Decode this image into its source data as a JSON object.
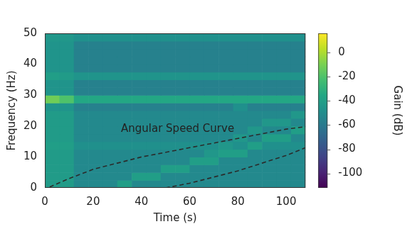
{
  "chart_data": {
    "type": "heatmap",
    "x_label": "Time (s)",
    "y_label": "Frequency (Hz)",
    "xlim": [
      0,
      108
    ],
    "xticks": [
      0,
      20,
      40,
      60,
      80,
      100
    ],
    "ylim": [
      0,
      50
    ],
    "yticks": [
      0,
      10,
      20,
      30,
      40,
      50
    ],
    "grid": false,
    "cells": {
      "x_edges": [
        0,
        6,
        12,
        18,
        24,
        30,
        36,
        42,
        48,
        54,
        60,
        66,
        72,
        78,
        84,
        90,
        96,
        102,
        108
      ],
      "y_edges": [
        0,
        2.5,
        5,
        7.5,
        10,
        12.5,
        15,
        17.5,
        20,
        22.5,
        25,
        27.5,
        30,
        32.5,
        35,
        37.5,
        40,
        42.5,
        45,
        47.5,
        50
      ],
      "values": [
        [
          -42,
          -42,
          -52,
          -52,
          -52,
          -40,
          -52,
          -52,
          -52,
          -52,
          -52,
          -52,
          -52,
          -52,
          -52,
          -52,
          -52,
          -52
        ],
        [
          -42,
          -42,
          -52,
          -52,
          -52,
          -52,
          -40,
          -40,
          -52,
          -52,
          -52,
          -52,
          -52,
          -52,
          -52,
          -52,
          -52,
          -52
        ],
        [
          -42,
          -42,
          -52,
          -52,
          -52,
          -52,
          -52,
          -52,
          -40,
          -40,
          -52,
          -52,
          -52,
          -52,
          -52,
          -52,
          -52,
          -52
        ],
        [
          -42,
          -42,
          -52,
          -52,
          -52,
          -52,
          -52,
          -52,
          -52,
          -52,
          -40,
          -40,
          -52,
          -52,
          -52,
          -52,
          -52,
          -52
        ],
        [
          -42,
          -42,
          -52,
          -52,
          -52,
          -52,
          -52,
          -52,
          -52,
          -52,
          -52,
          -44,
          -40,
          -40,
          -52,
          -52,
          -52,
          -52
        ],
        [
          -40,
          -40,
          -48,
          -48,
          -48,
          -48,
          -48,
          -48,
          -48,
          -48,
          -48,
          -48,
          -44,
          -48,
          -40,
          -48,
          -48,
          -48
        ],
        [
          -42,
          -42,
          -52,
          -52,
          -52,
          -52,
          -52,
          -52,
          -52,
          -52,
          -52,
          -52,
          -52,
          -44,
          -52,
          -40,
          -40,
          -52
        ],
        [
          -42,
          -42,
          -52,
          -52,
          -52,
          -52,
          -52,
          -52,
          -52,
          -52,
          -52,
          -52,
          -52,
          -52,
          -44,
          -52,
          -52,
          -40
        ],
        [
          -42,
          -42,
          -52,
          -52,
          -52,
          -52,
          -52,
          -52,
          -52,
          -52,
          -52,
          -52,
          -52,
          -52,
          -52,
          -44,
          -44,
          -52
        ],
        [
          -42,
          -42,
          -52,
          -52,
          -52,
          -52,
          -52,
          -52,
          -52,
          -52,
          -52,
          -52,
          -52,
          -52,
          -52,
          -52,
          -52,
          -44
        ],
        [
          -46,
          -46,
          -56,
          -56,
          -56,
          -56,
          -56,
          -56,
          -56,
          -56,
          -56,
          -56,
          -56,
          -48,
          -56,
          -56,
          -56,
          -56
        ],
        [
          -12,
          -20,
          -35,
          -35,
          -35,
          -35,
          -35,
          -35,
          -35,
          -35,
          -35,
          -35,
          -35,
          -35,
          -35,
          -35,
          -35,
          -35
        ],
        [
          -46,
          -46,
          -56,
          -56,
          -56,
          -56,
          -56,
          -56,
          -56,
          -56,
          -56,
          -56,
          -56,
          -56,
          -56,
          -56,
          -56,
          -56
        ],
        [
          -46,
          -46,
          -56,
          -56,
          -56,
          -56,
          -56,
          -56,
          -56,
          -56,
          -56,
          -56,
          -56,
          -56,
          -56,
          -56,
          -56,
          -56
        ],
        [
          -40,
          -42,
          -46,
          -46,
          -46,
          -46,
          -46,
          -46,
          -46,
          -46,
          -46,
          -46,
          -46,
          -46,
          -46,
          -46,
          -46,
          -46
        ],
        [
          -46,
          -46,
          -56,
          -56,
          -56,
          -56,
          -56,
          -56,
          -56,
          -56,
          -56,
          -56,
          -56,
          -56,
          -56,
          -56,
          -56,
          -56
        ],
        [
          -46,
          -46,
          -56,
          -56,
          -56,
          -56,
          -56,
          -56,
          -56,
          -56,
          -56,
          -56,
          -56,
          -56,
          -56,
          -56,
          -56,
          -56
        ],
        [
          -46,
          -46,
          -56,
          -56,
          -56,
          -56,
          -56,
          -56,
          -56,
          -56,
          -56,
          -56,
          -56,
          -56,
          -56,
          -56,
          -56,
          -56
        ],
        [
          -46,
          -46,
          -56,
          -56,
          -56,
          -56,
          -56,
          -56,
          -56,
          -56,
          -56,
          -56,
          -56,
          -56,
          -56,
          -56,
          -56,
          -56
        ],
        [
          -44,
          -44,
          -48,
          -48,
          -48,
          -48,
          -48,
          -48,
          -48,
          -48,
          -48,
          -48,
          -48,
          -48,
          -48,
          -48,
          -48,
          -48
        ]
      ]
    },
    "colorbar": {
      "label": "Gain (dB)",
      "range": [
        -112,
        16
      ],
      "ticks": [
        0,
        -20,
        -40,
        -60,
        -80,
        -100
      ]
    },
    "series": [
      {
        "type": "line",
        "color": "#2b2b2b",
        "line_style": "dashed",
        "x": [
          2,
          10,
          20,
          30,
          40,
          60,
          80,
          90,
          100,
          108
        ],
        "values": [
          0.3,
          3,
          6,
          8,
          10,
          13,
          16,
          17.5,
          19,
          19.8
        ]
      },
      {
        "type": "line",
        "color": "#2b2b2b",
        "line_style": "dashed",
        "x": [
          50,
          60,
          70,
          80,
          90,
          100,
          108
        ],
        "values": [
          0,
          1.5,
          3.5,
          5.5,
          8,
          10.5,
          13
        ]
      }
    ],
    "annotations": [
      {
        "text": "Angular Speed Curve",
        "x": 55,
        "y": 19
      }
    ]
  }
}
